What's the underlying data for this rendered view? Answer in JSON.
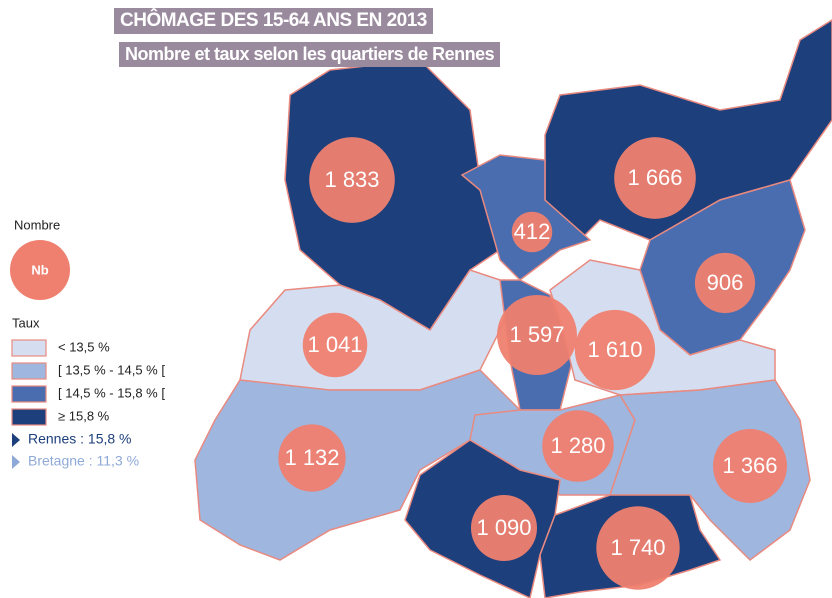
{
  "title": "CHÔMAGE DES 15-64 ANS  EN 2013",
  "subtitle": "Nombre et taux selon les quartiers de Rennes",
  "legend": {
    "size_title": "Nombre",
    "size_symbol": "Nb",
    "bubble_color": "#ef7f6f",
    "rate_title": "Taux",
    "classes": [
      {
        "label": "< 13,5 %",
        "color": "#d5def0"
      },
      {
        "label": "[ 13,5 % - 14,5 % [",
        "color": "#9fb6de"
      },
      {
        "label": "[ 14,5 % - 15,8 % [",
        "color": "#4a6db0"
      },
      {
        "label": "≥ 15,8 %",
        "color": "#1d3f7c"
      }
    ]
  },
  "references": [
    {
      "label": "Rennes : 15,8 %",
      "color": "#1d3f7c"
    },
    {
      "label": "Bretagne : 11,3 %",
      "color": "#8fa9d6"
    }
  ],
  "districts": [
    {
      "value": 1833,
      "label": "1 833",
      "color": "#1d3f7c"
    },
    {
      "value": 1666,
      "label": "1 666",
      "color": "#1d3f7c"
    },
    {
      "value": 412,
      "label": "412",
      "color": "#4a6db0"
    },
    {
      "value": 906,
      "label": "906",
      "color": "#4a6db0"
    },
    {
      "value": 1041,
      "label": "1 041",
      "color": "#d5def0"
    },
    {
      "value": 1597,
      "label": "1 597",
      "color": "#4a6db0"
    },
    {
      "value": 1610,
      "label": "1 610",
      "color": "#d5def0"
    },
    {
      "value": 1132,
      "label": "1 132",
      "color": "#9fb6de"
    },
    {
      "value": 1280,
      "label": "1 280",
      "color": "#9fb6de"
    },
    {
      "value": 1366,
      "label": "1 366",
      "color": "#9fb6de"
    },
    {
      "value": 1090,
      "label": "1 090",
      "color": "#1d3f7c"
    },
    {
      "value": 1740,
      "label": "1 740",
      "color": "#1d3f7c"
    }
  ]
}
